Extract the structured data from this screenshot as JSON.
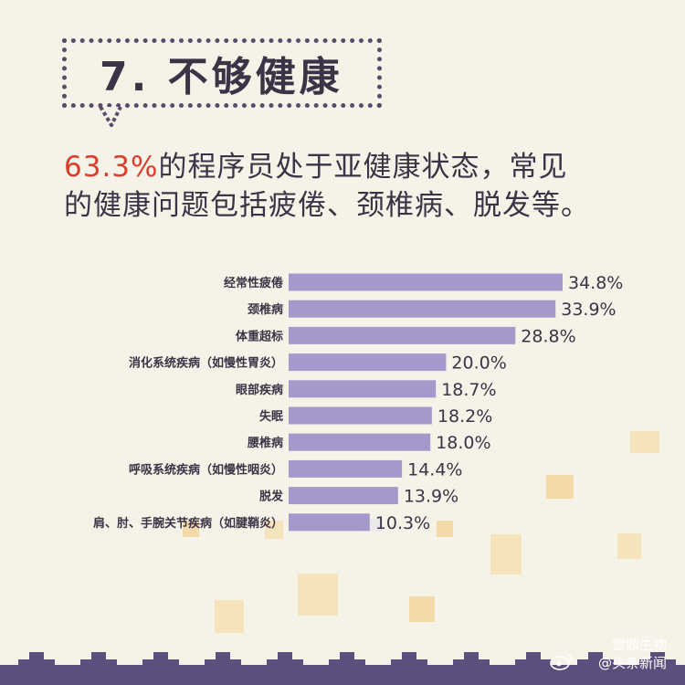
{
  "title": {
    "number": "7.",
    "text": "不够健康"
  },
  "headline": {
    "highlight": "63.3%",
    "line1_rest": "的程序员处于亚健康状态，常见",
    "line2": "的健康问题包括疲倦、颈椎病、脱发等。"
  },
  "chart_data": {
    "type": "bar",
    "orientation": "horizontal",
    "categories": [
      "经常性疲倦",
      "颈椎病",
      "体重超标",
      "消化系统疾病（如慢性胃炎）",
      "眼部疾病",
      "失眠",
      "腰椎病",
      "呼吸系统疾病（如慢性咽炎）",
      "脱发",
      "肩、肘、手腕关节疾病（如腱鞘炎）"
    ],
    "values": [
      34.8,
      33.9,
      28.8,
      20.0,
      18.7,
      18.2,
      18.0,
      14.4,
      13.9,
      10.3
    ],
    "value_labels": [
      "34.8%",
      "33.9%",
      "28.8%",
      "20.0%",
      "18.7%",
      "18.2%",
      "18.0%",
      "14.4%",
      "13.9%",
      "10.3%"
    ],
    "xlim": [
      0,
      40
    ],
    "bar_color": "#a599cc",
    "grid": false
  },
  "watermark": {
    "line1": "雪鼎生物",
    "line2": "@头条新闻"
  },
  "colors": {
    "background": "#f5f2e7",
    "accent": "#d93e2e",
    "dark": "#4a3f57",
    "bar": "#a599cc",
    "footer": "#5c4f7d"
  }
}
